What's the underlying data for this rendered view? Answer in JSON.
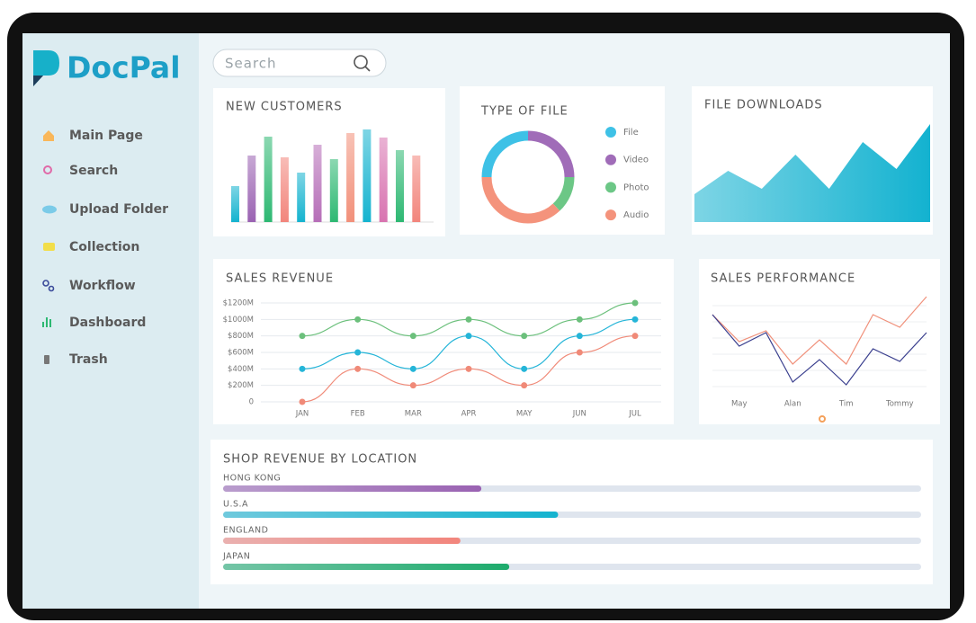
{
  "brand": "DocPal",
  "search": "Search",
  "nav": [
    "Main Page",
    "Search",
    "Upload Folder",
    "Collection",
    "Workflow",
    "Dashboard",
    "Trash"
  ],
  "chart_data": [
    {
      "type": "bar",
      "title": "NEW CUSTOMERS",
      "values": [
        40,
        74,
        95,
        72,
        55,
        86,
        70,
        99,
        103,
        94,
        80,
        74
      ],
      "colors": [
        "#14b3cf",
        "#9a62b2",
        "#2db872",
        "#f2857c",
        "#14b3cf",
        "#b66eb8",
        "#2db872",
        "#f2907a",
        "#14b3cf",
        "#d873b0",
        "#2db872",
        "#f2857c"
      ]
    },
    {
      "type": "donut",
      "title": "TYPE OF FILE",
      "categories": [
        "File",
        "Video",
        "Photo",
        "Audio"
      ],
      "values": [
        25,
        25,
        13,
        37
      ],
      "colors": [
        "#3ec1e6",
        "#a06cb8",
        "#6cc786",
        "#f4937c"
      ]
    },
    {
      "type": "area",
      "title": "FILE DOWNLOADS",
      "values": [
        31,
        57,
        37,
        75,
        37,
        89,
        59,
        109
      ],
      "color": "#13b2d0"
    },
    {
      "type": "line",
      "title": "SALES REVENUE",
      "categories": [
        "JAN",
        "FEB",
        "MAR",
        "APR",
        "MAY",
        "JUN",
        "JUL"
      ],
      "ylim": [
        0,
        1200
      ],
      "yticks": [
        0,
        {
          "value": 200,
          "label": "$200M"
        },
        {
          "value": 400,
          "label": "$400M"
        },
        {
          "value": 600,
          "label": "$600M"
        },
        {
          "value": 800,
          "label": "$800M"
        },
        {
          "value": 1000,
          "label": "$1000M"
        },
        {
          "value": 1200,
          "label": "$1200M"
        }
      ],
      "grid": true,
      "smooth": true,
      "series": [
        {
          "color": "#6cc07c",
          "values": [
            800,
            1000,
            800,
            1000,
            800,
            1000,
            1200
          ]
        },
        {
          "color": "#25b5d8",
          "values": [
            400,
            600,
            400,
            800,
            400,
            800,
            1000
          ]
        },
        {
          "color": "#f08a78",
          "values": [
            0,
            400,
            200,
            400,
            200,
            600,
            800
          ]
        }
      ]
    },
    {
      "type": "line",
      "title": "SALES PERFORMANCE",
      "categories": [
        null,
        "May",
        null,
        "Alan",
        null,
        "Tim",
        null,
        "Tommy",
        null
      ],
      "grid": true,
      "smooth": false,
      "series": [
        {
          "color": "#f0907a",
          "values": [
            80,
            50,
            62,
            25,
            52,
            25,
            80,
            66,
            100
          ]
        },
        {
          "color": "#3a3f8e",
          "values": [
            80,
            45,
            60,
            5,
            30,
            2,
            42,
            28,
            60
          ]
        }
      ]
    },
    {
      "type": "hbar",
      "title": "SHOP REVENUE BY LOCATION",
      "categories": [
        "HONG KONG",
        "U.S.A",
        "ENGLAND",
        "JAPAN"
      ],
      "values": [
        37,
        48,
        34,
        41
      ],
      "xlim": [
        0,
        100
      ],
      "colors": [
        "#9a62b2",
        "#14b3cf",
        "#f2857c",
        "#1dab6c"
      ]
    }
  ]
}
